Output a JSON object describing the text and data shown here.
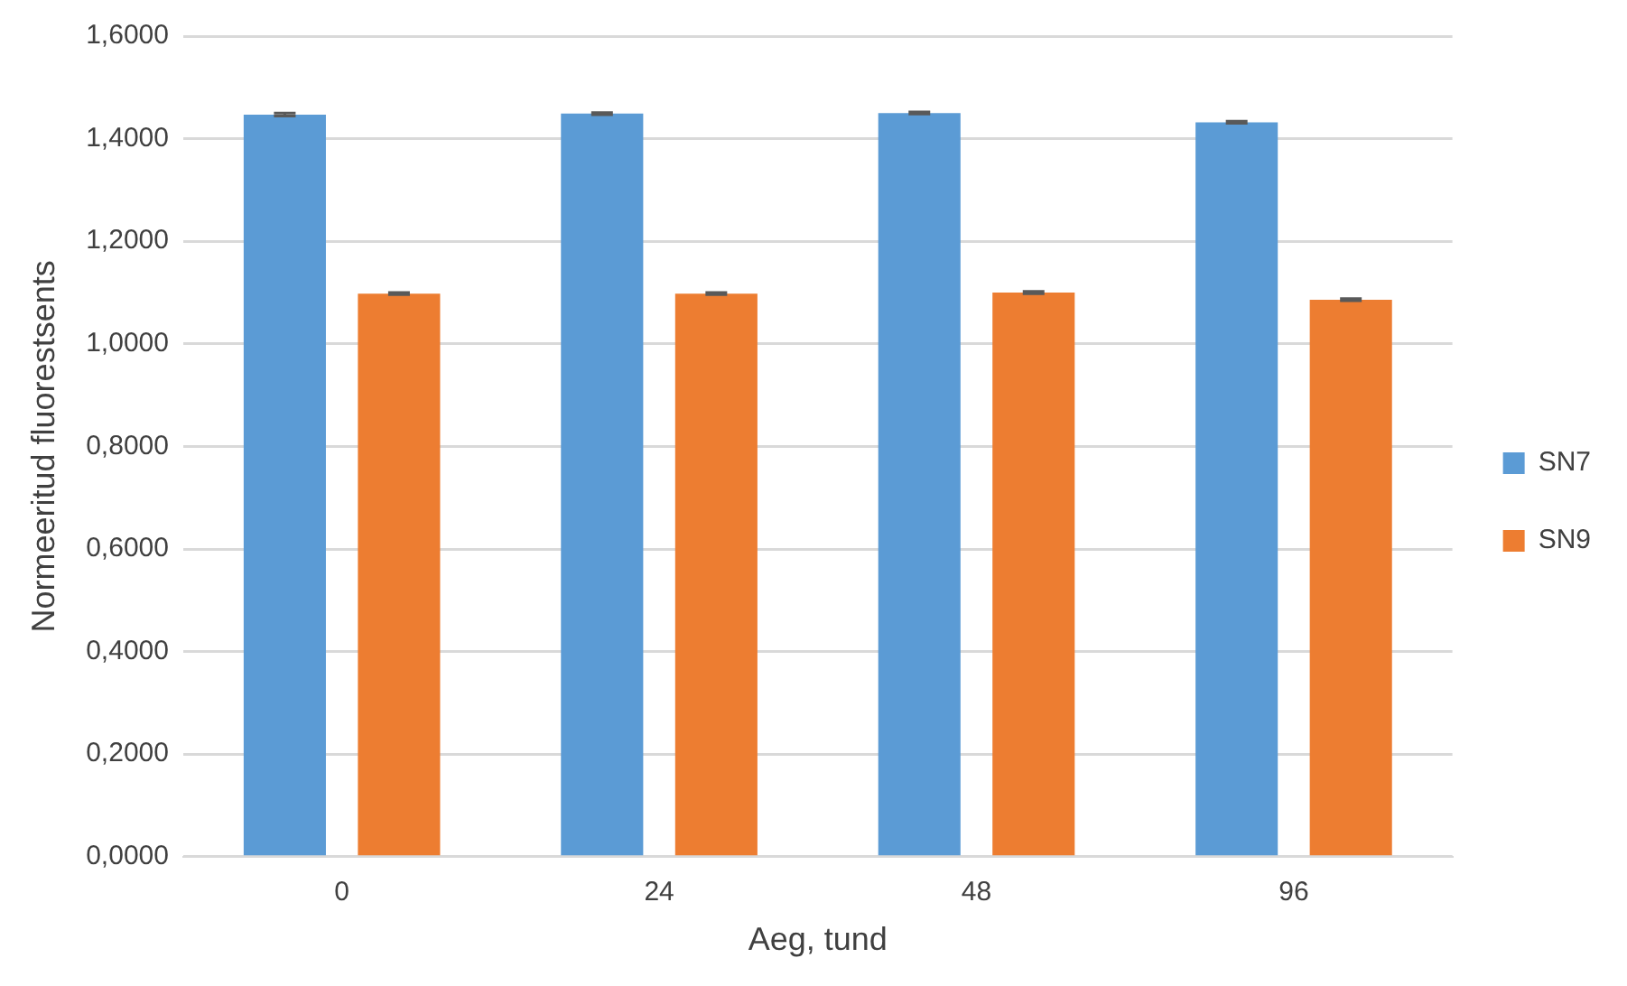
{
  "chart_data": {
    "type": "bar",
    "xlabel": "Aeg, tund",
    "ylabel": "Normeeritud fluorestsents",
    "categories": [
      "0",
      "24",
      "48",
      "96"
    ],
    "series": [
      {
        "name": "SN7",
        "color": "#5b9bd5",
        "values": [
          1.447,
          1.449,
          1.45,
          1.432
        ],
        "errors": [
          0.003,
          0.002,
          0.002,
          0.002
        ]
      },
      {
        "name": "SN9",
        "color": "#ed7d31",
        "values": [
          1.098,
          1.098,
          1.1,
          1.086
        ],
        "errors": [
          0.002,
          0.002,
          0.002,
          0.002
        ]
      }
    ],
    "ylim": [
      0,
      1.6
    ],
    "yticks": [
      {
        "value": 0,
        "label": "0,0000"
      },
      {
        "value": 0.2,
        "label": "0,2000"
      },
      {
        "value": 0.4,
        "label": "0,4000"
      },
      {
        "value": 0.6,
        "label": "0,6000"
      },
      {
        "value": 0.8,
        "label": "0,8000"
      },
      {
        "value": 1,
        "label": "1,0000"
      },
      {
        "value": 1.2,
        "label": "1,2000"
      },
      {
        "value": 1.4,
        "label": "1,4000"
      },
      {
        "value": 1.6,
        "label": "1,6000"
      }
    ],
    "grid": "y",
    "legend": "right"
  }
}
